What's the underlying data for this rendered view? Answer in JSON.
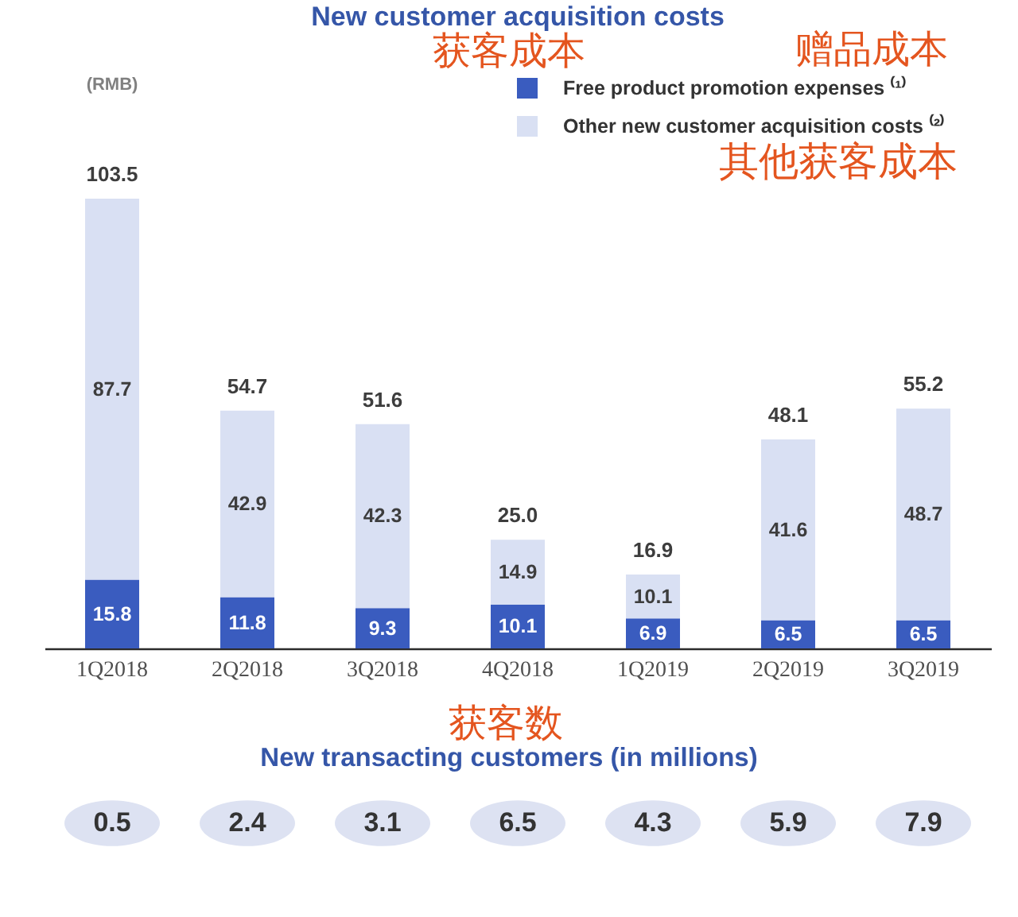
{
  "chart_data": [
    {
      "type": "bar",
      "title": "New customer acquisition costs",
      "ylabel": "(RMB)",
      "tick_labels": "x",
      "categories": [
        "1Q2018",
        "2Q2018",
        "3Q2018",
        "4Q2018",
        "1Q2019",
        "2Q2019",
        "3Q2019"
      ],
      "stacked": true,
      "series": [
        {
          "name": "Free product promotion expenses ⁽¹⁾",
          "color": "#3a5cbf",
          "values": [
            15.8,
            11.8,
            9.3,
            10.1,
            6.9,
            6.5,
            6.5
          ]
        },
        {
          "name": "Other new customer acquisition costs ⁽²⁾",
          "color": "#d9e0f3",
          "values": [
            87.7,
            42.9,
            42.3,
            14.9,
            10.1,
            41.6,
            48.7
          ]
        }
      ],
      "totals": [
        "103.5",
        "54.7",
        "51.6",
        "25.0",
        "16.9",
        "48.1",
        "55.2"
      ],
      "data_labels": true,
      "legend": "top right",
      "annotations": [
        "获客成本",
        "赠品成本",
        "其他获客成本"
      ]
    },
    {
      "type": "other",
      "title": "New transacting customers (in millions)",
      "categories": [
        null,
        null,
        null,
        null,
        null,
        null,
        null
      ],
      "values": [
        0.5,
        2.4,
        3.1,
        6.5,
        4.3,
        5.9,
        7.9
      ],
      "color": "#dde2f2",
      "data_labels": true,
      "annotations": [
        "获客数"
      ]
    }
  ]
}
